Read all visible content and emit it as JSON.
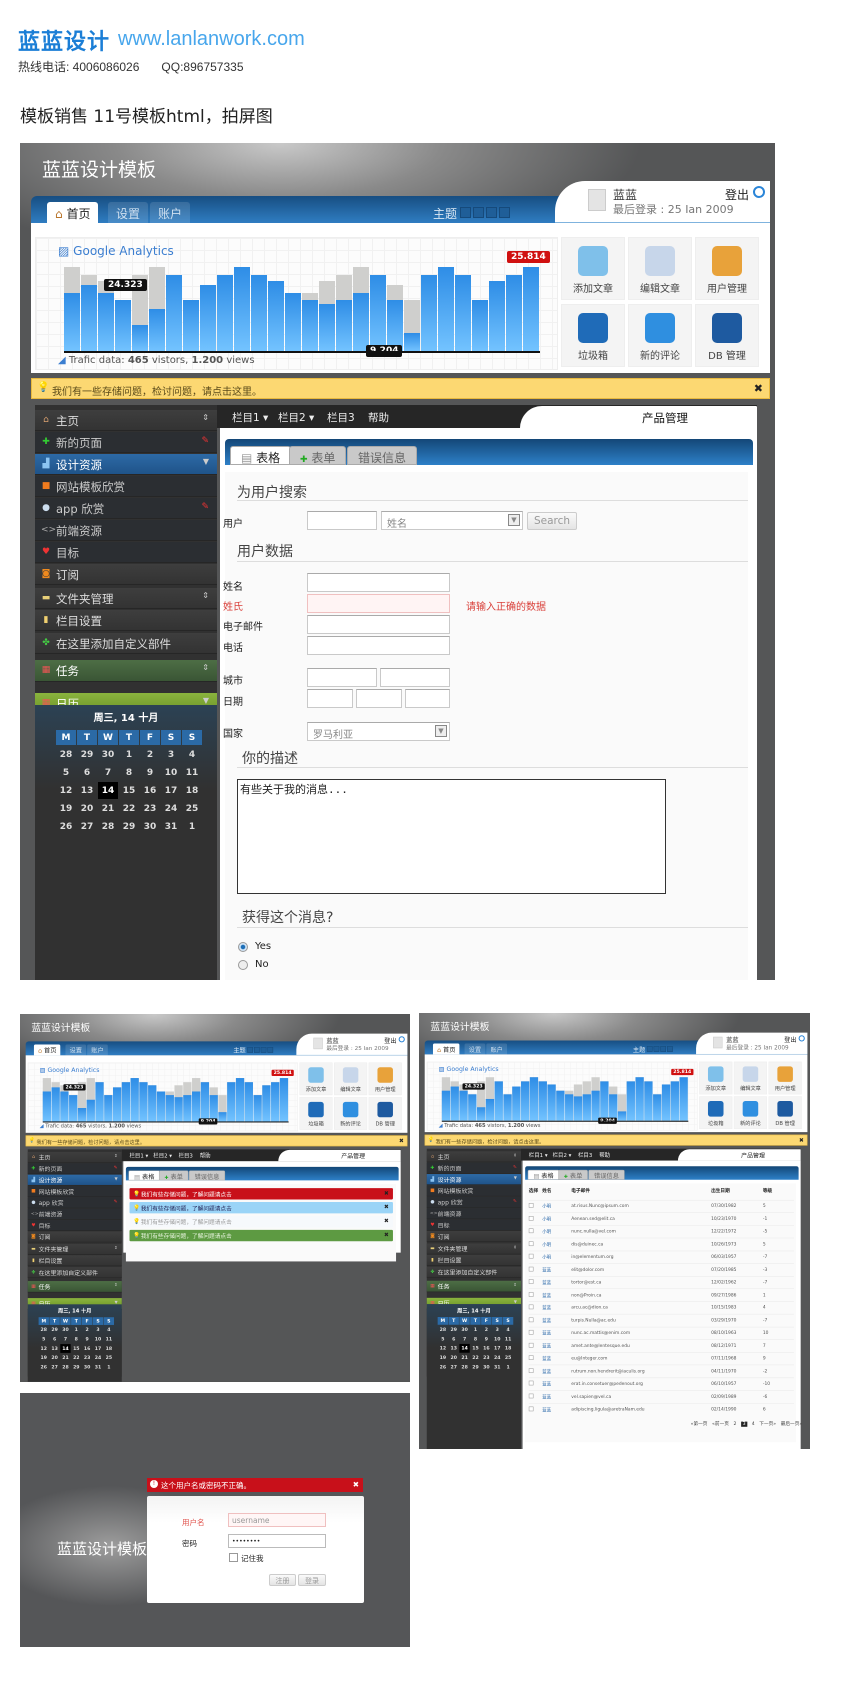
{
  "brand": {
    "name": "蓝蓝设计",
    "url": "www.lanlanwork.com",
    "hotline": "热线电话: 4006086026",
    "qq": "QQ:896757335"
  },
  "subtitle": "模板销售   11号模板html，拍屏图",
  "app": {
    "title": "蓝蓝设计模板",
    "tabs": [
      {
        "label": "首页",
        "active": true
      },
      {
        "label": "设置"
      },
      {
        "label": "账户"
      }
    ],
    "theme_label": "主题",
    "user": {
      "name": "蓝蓝",
      "last_login": "最后登录 : 25 Ian 2009",
      "logout": "登出"
    },
    "analytics": {
      "logo": "Google Analytics",
      "traffic_prefix": "Trafic data: ",
      "visitors": "465",
      "visitors_suffix": " vistors, ",
      "views": "1.200",
      "views_suffix": " views"
    },
    "tiles": [
      {
        "label": "添加文章",
        "icon": "add-article-icon",
        "color": "#7fc0ea"
      },
      {
        "label": "编辑文章",
        "icon": "edit-article-icon",
        "color": "#c7d6ea"
      },
      {
        "label": "用户管理",
        "icon": "user-folder-icon",
        "color": "#e8a23a"
      },
      {
        "label": "垃圾箱",
        "icon": "trash-icon",
        "color": "#1f6bb8"
      },
      {
        "label": "新的评论",
        "icon": "comment-icon",
        "color": "#2f8fe0"
      },
      {
        "label": "DB 管理",
        "icon": "database-icon",
        "color": "#1e5aa0"
      }
    ],
    "alert": "我们有一些存储问题，检讨问题，请点击这里。",
    "sidebar": [
      {
        "label": "主页",
        "icon": "home-icon",
        "style": "",
        "extra": "arrows"
      },
      {
        "label": "新的页面",
        "icon": "plus-icon",
        "style": "sub",
        "extra": "pin"
      },
      {
        "label": "设计资源",
        "icon": "chart-icon",
        "style": "blue",
        "extra": "down"
      },
      {
        "label": "网站模板欣赏",
        "icon": "square-icon",
        "style": "sub"
      },
      {
        "label": "app 欣赏",
        "icon": "mouse-icon",
        "style": "sub",
        "extra": "pin"
      },
      {
        "label": "前端资源",
        "icon": "code-icon",
        "style": "sub"
      },
      {
        "label": "目标",
        "icon": "map-pin-icon",
        "style": "sub"
      },
      {
        "label": "订阅",
        "icon": "rss-icon",
        "style": ""
      },
      {
        "label": "文件夹管理",
        "icon": "folder-icon",
        "style": "",
        "extra": "arrows"
      },
      {
        "label": "栏目设置",
        "icon": "note-icon",
        "style": ""
      },
      {
        "label": "在这里添加自定义部件",
        "icon": "puzzle-icon",
        "style": ""
      },
      {
        "label": "任务",
        "icon": "calendar-check-icon",
        "style": "gdark",
        "extra": "arrows"
      },
      {
        "label": "日历",
        "icon": "calendar-icon",
        "style": "glight",
        "extra": "down"
      }
    ],
    "calendar": {
      "title": "周三, 14 十月",
      "days": [
        "M",
        "T",
        "W",
        "T",
        "F",
        "S",
        "S"
      ],
      "weeks": [
        [
          "28",
          "29",
          "30",
          "1",
          "2",
          "3",
          "4"
        ],
        [
          "5",
          "6",
          "7",
          "8",
          "9",
          "10",
          "11"
        ],
        [
          "12",
          "13",
          "14",
          "15",
          "16",
          "17",
          "18"
        ],
        [
          "19",
          "20",
          "21",
          "22",
          "23",
          "24",
          "25"
        ],
        [
          "26",
          "27",
          "28",
          "29",
          "30",
          "31",
          "1"
        ]
      ],
      "today": "14"
    },
    "nav": [
      "栏目1 ▾",
      "栏目2 ▾",
      "栏目3",
      "帮助"
    ],
    "product_tab": "产品管理",
    "panel_tabs": [
      {
        "label": "表格",
        "active": true
      },
      {
        "label": "表单"
      },
      {
        "label": "错误信息"
      }
    ],
    "form": {
      "search_heading": "为用户搜索",
      "user_label": "用户",
      "user_value": "",
      "select_value": "姓名",
      "search_button": "Search",
      "data_heading": "用户数据",
      "name_label": "姓名",
      "surname_label": "姓氏",
      "error_msg": "请输入正确的数据",
      "email_label": "电子邮件",
      "phone_label": "电话",
      "city_label": "城市",
      "date_label": "日期",
      "country_label": "国家",
      "country_value": "罗马利亚",
      "desc_heading": "你的描述",
      "desc_value": "有些关于我的消息...",
      "news_heading": "获得这个消息?",
      "yes": "Yes",
      "no": "No",
      "selected": "Yes"
    }
  },
  "chart_data": {
    "type": "bar",
    "title": "",
    "series": [
      {
        "role": "visits",
        "color": "#3d9cf0",
        "values": [
          69,
          79,
          69,
          61,
          31,
          50,
          90,
          61,
          79,
          90,
          100,
          90,
          83,
          69,
          61,
          56,
          61,
          69,
          90,
          61,
          22,
          90,
          100,
          90,
          61,
          83,
          90,
          100
        ]
      },
      {
        "role": "views",
        "color": "#cfcfcd",
        "values": [
          100,
          90,
          83,
          61,
          90,
          100,
          90,
          61,
          79,
          90,
          100,
          90,
          83,
          69,
          69,
          83,
          90,
          100,
          90,
          79,
          61,
          90,
          100,
          90,
          61,
          83,
          90,
          100
        ]
      }
    ],
    "annotations": [
      {
        "bar": 2,
        "label": "24.323"
      },
      {
        "bar": 21,
        "label": "9.204"
      },
      {
        "bar": 28,
        "label": "25.814",
        "highlight": "#d01010"
      }
    ],
    "ylim": [
      0,
      100
    ],
    "grid": true
  },
  "thumb_alerts": {
    "items": [
      {
        "text": "我们有些存储问题，了解问题请点击",
        "bg": "#c8101a",
        "fg": "#fff"
      },
      {
        "text": "我们有些存储问题，了解问题请点击",
        "bg": "#9ad4f7",
        "fg": "#225"
      },
      {
        "text": "我们有些存储问题，了解问题请点击",
        "bg": "#f6f9fc",
        "fg": "#999"
      },
      {
        "text": "我们有些存储问题，了解问题请点击",
        "bg": "#5d9a42",
        "fg": "#eaf5e0"
      }
    ]
  },
  "thumb_table": {
    "headers": [
      "选择",
      "姓名",
      "电子邮件",
      "出生日期",
      "等级"
    ],
    "rows": [
      [
        "小明",
        "at.risus.Nunc@ipsum.com",
        "07/30/1982",
        "5"
      ],
      [
        "小明",
        "Aenean.sed@elit.ca",
        "10/23/1970",
        "-1"
      ],
      [
        "小明",
        "nunc.nulla@vel.com",
        "12/22/1972",
        "-5"
      ],
      [
        "小明",
        "dis@duinec.ca",
        "10/26/1973",
        "5"
      ],
      [
        "小明",
        "in@elementum.org",
        "06/03/1957",
        "-7"
      ],
      [
        "蓝蓝",
        "elit@dolor.com",
        "07/20/1985",
        "-3"
      ],
      [
        "蓝蓝",
        "tortor@est.ca",
        "12/02/1962",
        "-7"
      ],
      [
        "蓝蓝",
        "non@Proin.ca",
        "09/27/1986",
        "1"
      ],
      [
        "蓝蓝",
        "arcu.ac@dion.ca",
        "10/15/1983",
        "4"
      ],
      [
        "蓝蓝",
        "turpis.Nulla@ac.edu",
        "03/29/1970",
        "-7"
      ],
      [
        "蓝蓝",
        "nunc.ac.mattis@enim.com",
        "08/10/1963",
        "10"
      ],
      [
        "蓝蓝",
        "amet.ante@lentesque.edu",
        "08/12/1971",
        "7"
      ],
      [
        "蓝蓝",
        "eu@Integer.com",
        "07/11/1968",
        "9"
      ],
      [
        "蓝蓝",
        "rutrum.non.hendrerit@iaculis.org",
        "04/11/1970",
        "-2"
      ],
      [
        "蓝蓝",
        "erat.in.consetuer@pedenout.org",
        "06/10/1957",
        "-10"
      ],
      [
        "蓝蓝",
        "vel.sapien@vel.ca",
        "02/09/1989",
        "-6"
      ],
      [
        "蓝蓝",
        "adipiscing.ligula@aretraNam.edu",
        "02/14/1990",
        "6"
      ]
    ],
    "pager": [
      "«第一页",
      "«前一页",
      "2",
      "3",
      "4",
      "下一页»",
      "最后一页»"
    ],
    "current_page": "3"
  },
  "login": {
    "title": "蓝蓝设计模板",
    "error": "这个用户名或密码不正确。",
    "username_label": "用户名",
    "username_placeholder": "username",
    "password_label": "密码",
    "password_value": "••••••••",
    "remember": "记住我",
    "register": "注册",
    "login": "登录"
  }
}
